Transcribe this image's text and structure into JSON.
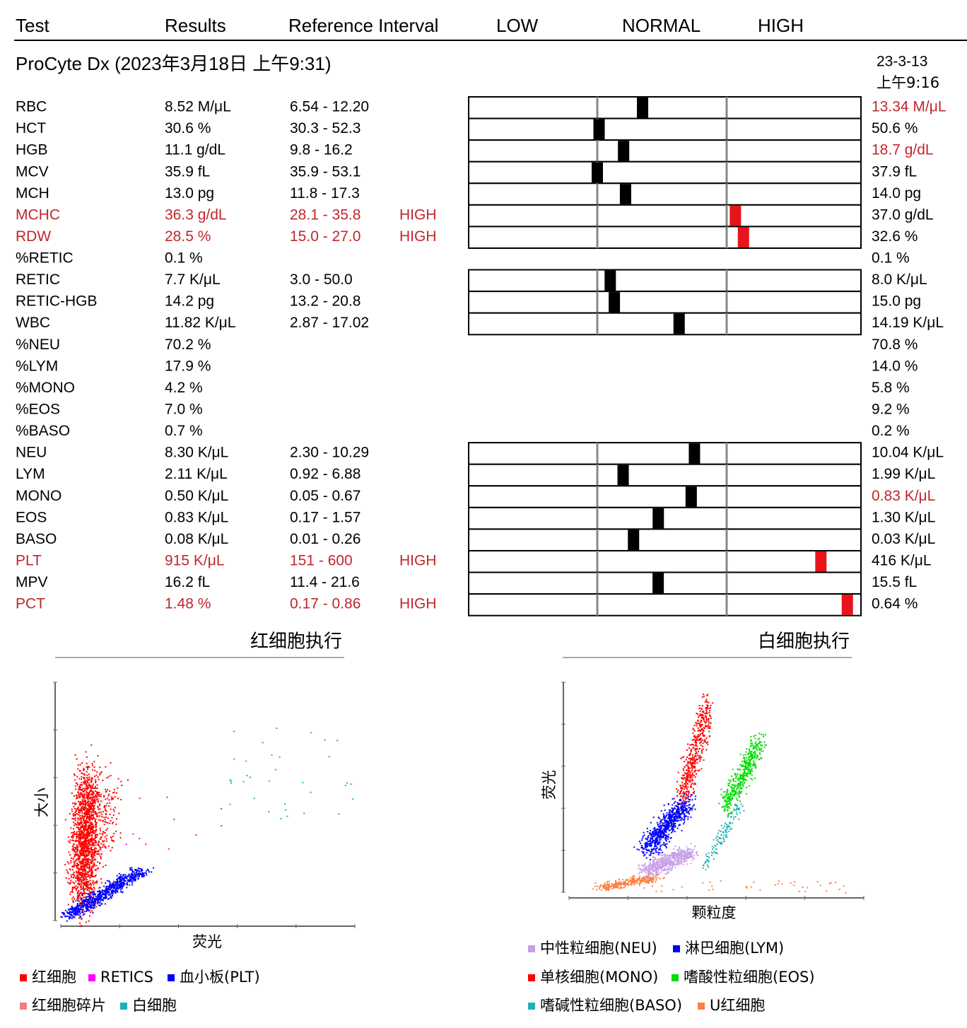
{
  "header": {
    "columns": [
      "Test",
      "Results",
      "Reference Interval",
      "LOW",
      "NORMAL",
      "HIGH"
    ]
  },
  "instrument": "ProCyte Dx (2023年3月18日 上午9:31)",
  "previous_date": [
    "23-3-13",
    "上午9:16"
  ],
  "rows": [
    {
      "test": "RBC",
      "result": {
        "value": 8.52,
        "label": "8.52 M/μL"
      },
      "reference": {
        "low": 6.54,
        "high": 12.2,
        "label": "6.54 - 12.20"
      },
      "previous": "13.34 M/μL",
      "previous_abnormal": true
    },
    {
      "test": "HCT",
      "result": {
        "value": 30.6,
        "label": "30.6 %"
      },
      "reference": {
        "low": 30.3,
        "high": 52.3,
        "label": "30.3 - 52.3"
      },
      "previous": "50.6 %"
    },
    {
      "test": "HGB",
      "result": {
        "value": 11.1,
        "label": "11.1 g/dL"
      },
      "reference": {
        "low": 9.8,
        "high": 16.2,
        "label": "9.8 - 16.2"
      },
      "previous": "18.7 g/dL",
      "previous_abnormal": true
    },
    {
      "test": "MCV",
      "result": {
        "value": 35.9,
        "label": "35.9 fL"
      },
      "reference": {
        "low": 35.9,
        "high": 53.1,
        "label": "35.9 - 53.1"
      },
      "previous": "37.9 fL"
    },
    {
      "test": "MCH",
      "result": {
        "value": 13.0,
        "label": "13.0 pg"
      },
      "reference": {
        "low": 11.8,
        "high": 17.3,
        "label": "11.8 - 17.3"
      },
      "previous": "14.0 pg"
    },
    {
      "test": "MCHC",
      "result": {
        "value": 36.3,
        "label": "36.3 g/dL"
      },
      "reference": {
        "low": 28.1,
        "high": 35.8,
        "label": "28.1 - 35.8"
      },
      "flag": "HIGH",
      "previous": "37.0 g/dL"
    },
    {
      "test": "RDW",
      "result": {
        "value": 28.5,
        "label": "28.5 %"
      },
      "reference": {
        "low": 15.0,
        "high": 27.0,
        "label": "15.0 - 27.0"
      },
      "flag": "HIGH",
      "previous": "32.6 %"
    },
    {
      "test": "%RETIC",
      "result": {
        "value": 0.1,
        "label": "0.1 %"
      },
      "previous": "0.1 %"
    },
    {
      "test": "RETIC",
      "result": {
        "value": 7.7,
        "label": "7.7 K/μL"
      },
      "reference": {
        "low": 3.0,
        "high": 50.0,
        "label": "3.0 - 50.0"
      },
      "previous": "8.0 K/μL"
    },
    {
      "test": "RETIC-HGB",
      "result": {
        "value": 14.2,
        "label": "14.2 pg"
      },
      "reference": {
        "low": 13.2,
        "high": 20.8,
        "label": "13.2 - 20.8"
      },
      "previous": "15.0 pg"
    },
    {
      "test": "WBC",
      "result": {
        "value": 11.82,
        "label": "11.82 K/μL"
      },
      "reference": {
        "low": 2.87,
        "high": 17.02,
        "label": "2.87 - 17.02"
      },
      "previous": "14.19 K/μL"
    },
    {
      "test": "%NEU",
      "result": {
        "value": 70.2,
        "label": "70.2 %"
      },
      "previous": "70.8 %"
    },
    {
      "test": "%LYM",
      "result": {
        "value": 17.9,
        "label": "17.9 %"
      },
      "previous": "14.0 %"
    },
    {
      "test": "%MONO",
      "result": {
        "value": 4.2,
        "label": "4.2 %"
      },
      "previous": "5.8 %"
    },
    {
      "test": "%EOS",
      "result": {
        "value": 7.0,
        "label": "7.0 %"
      },
      "previous": "9.2 %"
    },
    {
      "test": "%BASO",
      "result": {
        "value": 0.7,
        "label": "0.7 %"
      },
      "previous": "0.2 %"
    },
    {
      "test": "NEU",
      "result": {
        "value": 8.3,
        "label": "8.30 K/μL"
      },
      "reference": {
        "low": 2.3,
        "high": 10.29,
        "label": "2.30 - 10.29"
      },
      "previous": "10.04 K/μL"
    },
    {
      "test": "LYM",
      "result": {
        "value": 2.11,
        "label": "2.11 K/μL"
      },
      "reference": {
        "low": 0.92,
        "high": 6.88,
        "label": "0.92 - 6.88"
      },
      "previous": "1.99 K/μL"
    },
    {
      "test": "MONO",
      "result": {
        "value": 0.5,
        "label": "0.50 K/μL"
      },
      "reference": {
        "low": 0.05,
        "high": 0.67,
        "label": "0.05 - 0.67"
      },
      "previous": "0.83 K/μL",
      "previous_abnormal": true
    },
    {
      "test": "EOS",
      "result": {
        "value": 0.83,
        "label": "0.83 K/μL"
      },
      "reference": {
        "low": 0.17,
        "high": 1.57,
        "label": "0.17 - 1.57"
      },
      "previous": "1.30 K/μL"
    },
    {
      "test": "BASO",
      "result": {
        "value": 0.08,
        "label": "0.08 K/μL"
      },
      "reference": {
        "low": 0.01,
        "high": 0.26,
        "label": "0.01 - 0.26"
      },
      "previous": "0.03 K/μL"
    },
    {
      "test": "PLT",
      "result": {
        "value": 915,
        "label": "915 K/μL"
      },
      "reference": {
        "low": 151,
        "high": 600,
        "label": "151 - 600"
      },
      "flag": "HIGH",
      "previous": "416 K/μL"
    },
    {
      "test": "MPV",
      "result": {
        "value": 16.2,
        "label": "16.2 fL"
      },
      "reference": {
        "low": 11.4,
        "high": 21.6,
        "label": "11.4 - 21.6"
      },
      "previous": "15.5 fL"
    },
    {
      "test": "PCT",
      "result": {
        "value": 1.48,
        "label": "1.48 %"
      },
      "reference": {
        "low": 0.17,
        "high": 0.86,
        "label": "0.17 - 0.86"
      },
      "flag": "HIGH",
      "previous": "0.64 %"
    }
  ],
  "rbc_plot": {
    "title": "红细胞执行",
    "y_label": "大小",
    "x_label": "荧光",
    "legend": [
      {
        "name": "红细胞",
        "color": "#ff0000"
      },
      {
        "name": "RETICS",
        "color": "#ff00ff"
      },
      {
        "name": "血小板(PLT)",
        "color": "#0000ff"
      },
      {
        "name": "红细胞碎片",
        "color": "#f08080"
      },
      {
        "name": "白细胞",
        "color": "#20b2b2"
      }
    ]
  },
  "wbc_plot": {
    "title": "白细胞执行",
    "y_label": "荧光",
    "x_label": "颗粒度",
    "legend": [
      {
        "name": "中性粒细胞(NEU)",
        "color": "#c8a0e8"
      },
      {
        "name": "淋巴细胞(LYM)",
        "color": "#0000ff"
      },
      {
        "name": "单核细胞(MONO)",
        "color": "#ff0000"
      },
      {
        "name": "嗜酸性粒细胞(EOS)",
        "color": "#00dd00"
      },
      {
        "name": "嗜碱性粒细胞(BASO)",
        "color": "#20b2b2"
      },
      {
        "name": "U红细胞",
        "color": "#ff7f3f"
      }
    ]
  }
}
